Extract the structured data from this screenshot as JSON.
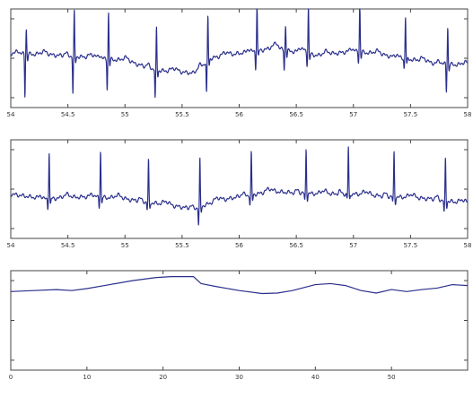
{
  "chart_data": [
    {
      "type": "line",
      "xlim": [
        54,
        58
      ],
      "ylim": [
        -1.0,
        1.0
      ],
      "xticks": [
        54,
        54.5,
        55,
        55.5,
        56,
        56.5,
        57,
        57.5,
        58
      ],
      "xtick_labels": [
        "54",
        "54.5",
        "55",
        "55.5",
        "56",
        "56.5",
        "57",
        "57.5",
        "58"
      ],
      "grid": false,
      "color": "#2b2f8c",
      "baseline": [
        [
          54,
          0.1
        ],
        [
          54.5,
          0.05
        ],
        [
          55,
          -0.05
        ],
        [
          55.3,
          -0.25
        ],
        [
          55.6,
          -0.3
        ],
        [
          55.75,
          0.0
        ],
        [
          56,
          0.1
        ],
        [
          56.3,
          0.2
        ],
        [
          56.7,
          0.05
        ],
        [
          57,
          0.15
        ],
        [
          57.3,
          0.05
        ],
        [
          57.7,
          -0.1
        ],
        [
          58,
          -0.15
        ]
      ],
      "beats": [
        {
          "x": 54.13,
          "r": -0.85,
          "s": 0.5
        },
        {
          "x": 54.55,
          "r": -0.75,
          "s": 0.9
        },
        {
          "x": 54.85,
          "r": -0.6,
          "s": 0.95
        },
        {
          "x": 55.27,
          "r": -0.6,
          "s": 0.85
        },
        {
          "x": 55.72,
          "r": -0.65,
          "s": 0.9
        },
        {
          "x": 56.15,
          "r": -0.35,
          "s": 0.95
        },
        {
          "x": 56.4,
          "r": -0.4,
          "s": 0.5
        },
        {
          "x": 56.6,
          "r": -0.25,
          "s": 0.95
        },
        {
          "x": 57.05,
          "r": -0.2,
          "s": 1.0
        },
        {
          "x": 57.45,
          "r": -0.2,
          "s": 0.85
        },
        {
          "x": 57.82,
          "r": -0.55,
          "s": 0.75
        }
      ]
    },
    {
      "type": "line",
      "xlim": [
        54,
        58
      ],
      "ylim": [
        -1.0,
        1.0
      ],
      "xticks": [
        54,
        54.5,
        55,
        55.5,
        56,
        56.5,
        57,
        57.5,
        58
      ],
      "xtick_labels": [
        "54",
        "54.5",
        "55",
        "55.5",
        "56",
        "56.5",
        "57",
        "57.5",
        "58"
      ],
      "grid": false,
      "color": "#2b2f8c",
      "baseline": [
        [
          54,
          -0.1
        ],
        [
          54.3,
          -0.2
        ],
        [
          54.7,
          -0.15
        ],
        [
          55,
          -0.2
        ],
        [
          55.3,
          -0.3
        ],
        [
          55.6,
          -0.4
        ],
        [
          55.8,
          -0.25
        ],
        [
          56,
          -0.15
        ],
        [
          56.3,
          -0.05
        ],
        [
          56.7,
          -0.1
        ],
        [
          57,
          -0.1
        ],
        [
          57.3,
          -0.15
        ],
        [
          57.7,
          -0.2
        ],
        [
          58,
          -0.3
        ]
      ],
      "beats": [
        {
          "x": 54.33,
          "r": -0.2,
          "s": 0.95
        },
        {
          "x": 54.78,
          "r": -0.2,
          "s": 0.95
        },
        {
          "x": 55.2,
          "r": -0.15,
          "s": 0.85
        },
        {
          "x": 55.65,
          "r": -0.35,
          "s": 0.95
        },
        {
          "x": 56.1,
          "r": -0.2,
          "s": 0.85
        },
        {
          "x": 56.58,
          "r": -0.15,
          "s": 0.9
        },
        {
          "x": 56.95,
          "r": -0.1,
          "s": 0.95
        },
        {
          "x": 57.35,
          "r": -0.1,
          "s": 0.9
        },
        {
          "x": 57.8,
          "r": -0.25,
          "s": 0.85
        }
      ]
    },
    {
      "type": "line",
      "xlim": [
        0,
        60
      ],
      "ylim": [
        -1.0,
        1.0
      ],
      "xticks": [
        0,
        10,
        20,
        30,
        40,
        50
      ],
      "xtick_labels": [
        "0",
        "10",
        "20",
        "30",
        "40",
        "50"
      ],
      "grid": false,
      "color": "#2b2f8c",
      "x": [
        0,
        3,
        6,
        8,
        10,
        13,
        16,
        19,
        21,
        24,
        25,
        27,
        30,
        33,
        35,
        37,
        40,
        42,
        44,
        46,
        48,
        50,
        52,
        54,
        56,
        58,
        60
      ],
      "y": [
        0.58,
        0.6,
        0.62,
        0.6,
        0.64,
        0.72,
        0.8,
        0.86,
        0.88,
        0.88,
        0.74,
        0.68,
        0.6,
        0.54,
        0.55,
        0.6,
        0.72,
        0.74,
        0.7,
        0.6,
        0.55,
        0.62,
        0.58,
        0.62,
        0.65,
        0.72,
        0.7
      ]
    }
  ]
}
